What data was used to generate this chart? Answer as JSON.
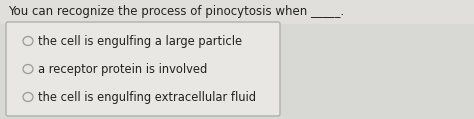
{
  "title": "You can recognize the process of pinocytosis when _____.",
  "title_fontsize": 8.5,
  "options": [
    "the cell is engulfing a large particle",
    "a receptor protein is involved",
    "the cell is engulfing extracellular fluid"
  ],
  "option_fontsize": 8.3,
  "fig_bg_color": "#d8d8d5",
  "box_bg_color": "#e8e7e3",
  "box_edge_color": "#b0b0b0",
  "text_color": "#222222",
  "title_color": "#222222",
  "circle_edge_color": "#999999",
  "circle_face_color": "#e8e7e3",
  "title_bg_color": "#e0dfdb"
}
